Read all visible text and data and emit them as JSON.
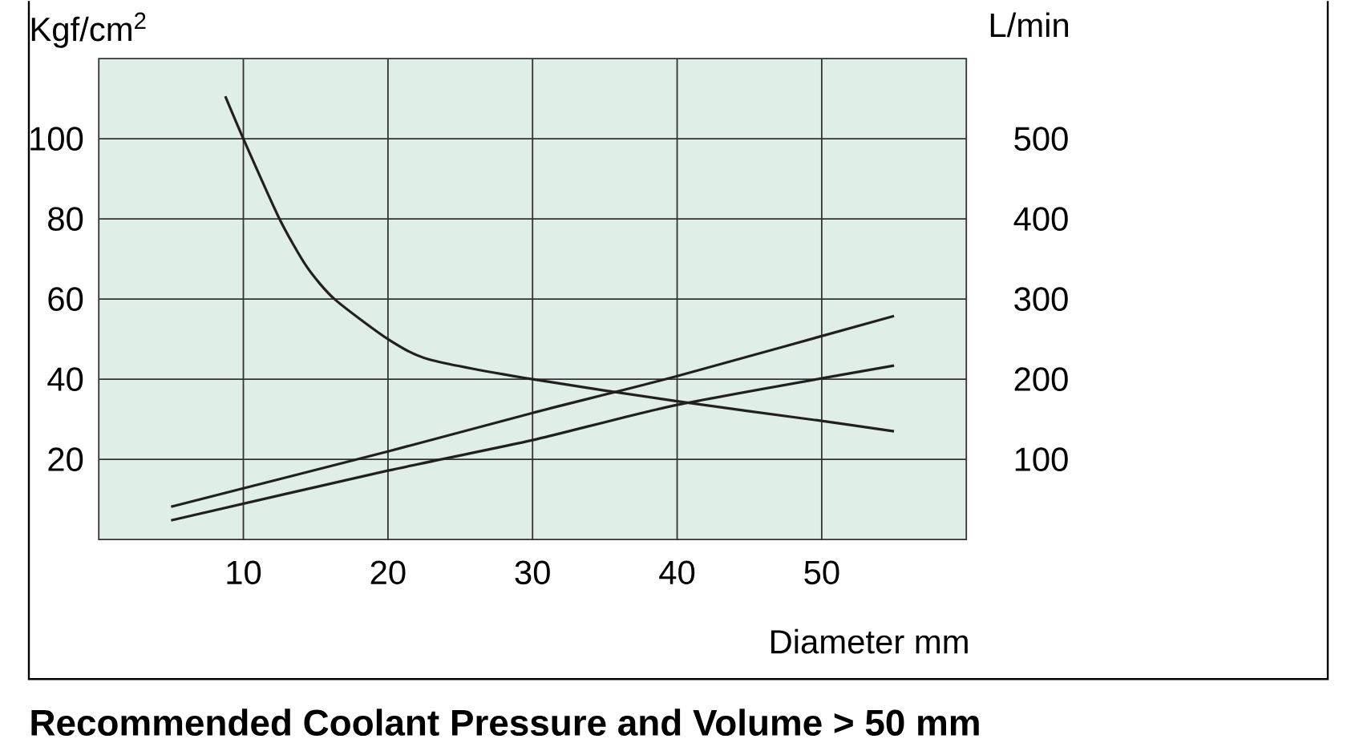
{
  "chart_data": {
    "type": "line",
    "title": "Recommended Coolant Pressure and Volume > 50 mm",
    "xlabel": "Diameter mm",
    "ylabel": "Kgf/cm$^{2}$",
    "y2label": "L/min",
    "xlim": [
      0,
      60
    ],
    "xticks": [
      10,
      20,
      30,
      40,
      50
    ],
    "ylim": [
      0,
      120
    ],
    "yticks": [
      20,
      40,
      60,
      80,
      100
    ],
    "y2lim": [
      0,
      600
    ],
    "y2ticks": [
      100,
      200,
      300,
      400,
      500
    ],
    "grid": true,
    "series": [
      {
        "color": "#231f20",
        "x": [
          8.75,
          10,
          12.5,
          14.4,
          16.3,
          20,
          22.8,
          30,
          40,
          50,
          55
        ],
        "values": [
          110.6,
          100,
          80,
          68,
          60,
          50,
          45,
          40,
          34.5,
          29.6,
          27
        ]
      },
      {
        "type": "line",
        "axis": "y2",
        "color": "#231f20",
        "x": [
          5,
          20,
          30,
          40,
          55
        ],
        "values": [
          41,
          110,
          158,
          204,
          279
        ]
      },
      {
        "type": "line",
        "axis": "y2",
        "color": "#231f20",
        "x": [
          5,
          20,
          30,
          40,
          55
        ],
        "values": [
          24,
          86,
          124,
          168,
          217
        ]
      }
    ]
  }
}
